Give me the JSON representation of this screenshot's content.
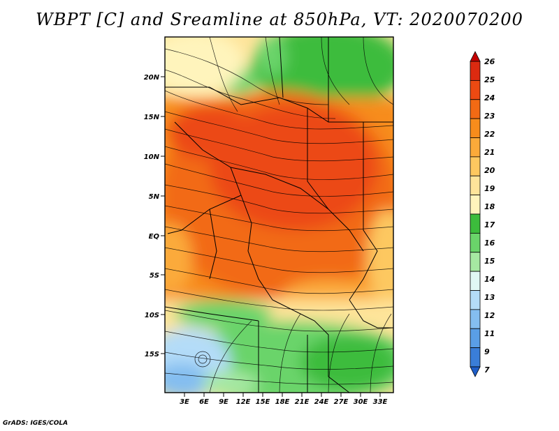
{
  "title": "WBPT [C] and Sreamline at 850hPa, VT: 2020070200",
  "credit": "GrADS: IGES/COLA",
  "map": {
    "lat_labels": [
      "20N",
      "15N",
      "10N",
      "5N",
      "EQ",
      "5S",
      "10S",
      "15S"
    ],
    "lon_labels": [
      "3E",
      "6E",
      "9E",
      "12E",
      "15E",
      "18E",
      "21E",
      "24E",
      "27E",
      "30E",
      "33E"
    ]
  },
  "colorbar": {
    "labels": [
      "26",
      "25",
      "24",
      "23",
      "22",
      "21",
      "20",
      "19",
      "18",
      "17",
      "16",
      "15",
      "14",
      "13",
      "12",
      "11",
      "9",
      "7"
    ],
    "colors": [
      "#c40000",
      "#dc2a10",
      "#ec4a12",
      "#f26a14",
      "#f78c1c",
      "#fbaa3a",
      "#fdc860",
      "#fee49a",
      "#fff4bc",
      "#3cbc3c",
      "#6ad46a",
      "#a6e8a2",
      "#e0f8f4",
      "#b4dcf8",
      "#84bef0",
      "#5a9ee6",
      "#3a7ed8",
      "#1e5ec8"
    ]
  }
}
